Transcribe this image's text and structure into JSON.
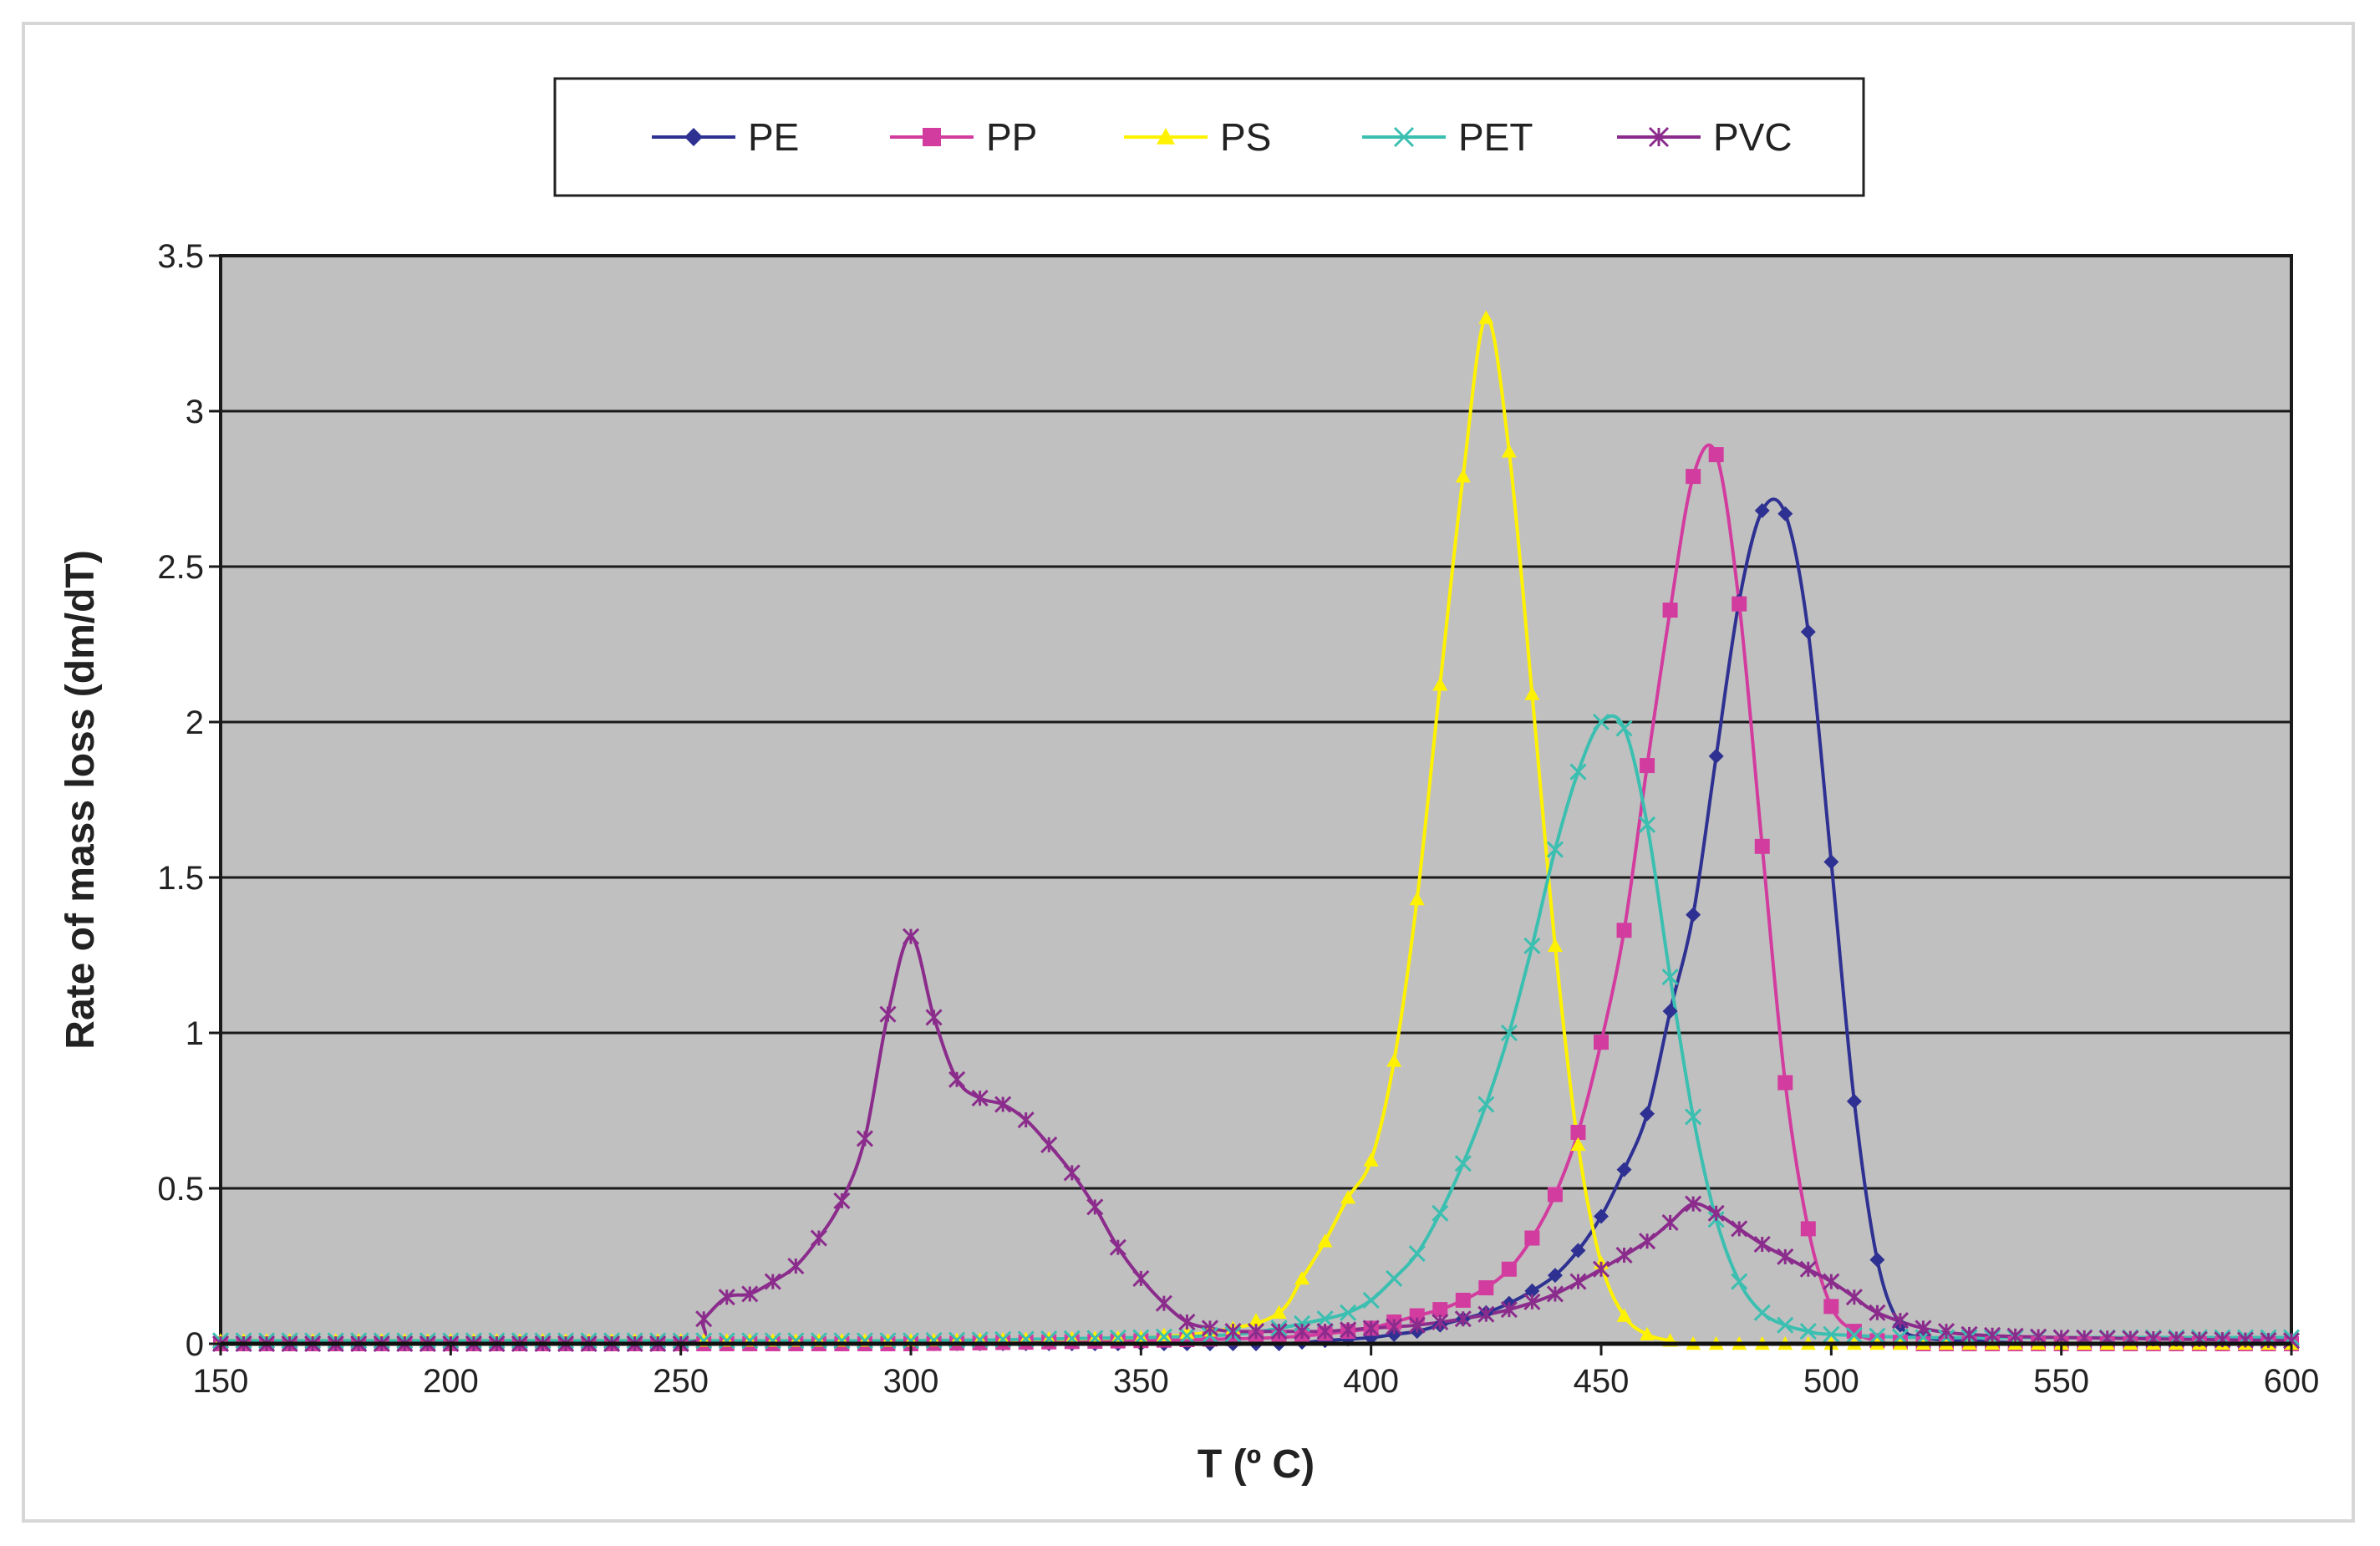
{
  "chart_data": {
    "type": "line",
    "title": "",
    "xlabel": "T (º C)",
    "ylabel": "Rate of mass loss (dm/dT)",
    "xlim": [
      150,
      600
    ],
    "ylim": [
      0,
      3.5
    ],
    "x_ticks": [
      150,
      200,
      250,
      300,
      350,
      400,
      450,
      500,
      550,
      600
    ],
    "y_ticks": [
      0,
      0.5,
      1,
      1.5,
      2,
      2.5,
      3,
      3.5
    ],
    "x_tick_labels": [
      "150",
      "200",
      "250",
      "300",
      "350",
      "400",
      "450",
      "500",
      "550",
      "600"
    ],
    "y_tick_labels": [
      "0",
      "0.5",
      "1",
      "1.5",
      "2",
      "2.5",
      "3",
      "3.5"
    ],
    "grid": "horizontal",
    "plot_background": "#c0c0c0",
    "legend_position": "top-center",
    "series": [
      {
        "name": "PE",
        "color": "#2e3192",
        "marker": "diamond",
        "points": [
          [
            150,
            0
          ],
          [
            200,
            0
          ],
          [
            250,
            0
          ],
          [
            300,
            0
          ],
          [
            350,
            0
          ],
          [
            380,
            0
          ],
          [
            390,
            0.01
          ],
          [
            400,
            0.02
          ],
          [
            405,
            0.03
          ],
          [
            410,
            0.04
          ],
          [
            415,
            0.06
          ],
          [
            420,
            0.08
          ],
          [
            425,
            0.1
          ],
          [
            430,
            0.13
          ],
          [
            435,
            0.17
          ],
          [
            440,
            0.22
          ],
          [
            445,
            0.3
          ],
          [
            450,
            0.41
          ],
          [
            455,
            0.56
          ],
          [
            460,
            0.74
          ],
          [
            465,
            1.07
          ],
          [
            470,
            1.38
          ],
          [
            475,
            1.89
          ],
          [
            480,
            2.39
          ],
          [
            485,
            2.68
          ],
          [
            490,
            2.67
          ],
          [
            495,
            2.29
          ],
          [
            500,
            1.55
          ],
          [
            505,
            0.78
          ],
          [
            510,
            0.27
          ],
          [
            515,
            0.06
          ],
          [
            520,
            0.02
          ],
          [
            530,
            0.01
          ],
          [
            550,
            0
          ],
          [
            600,
            0
          ]
        ]
      },
      {
        "name": "PP",
        "color": "#d33c9f",
        "marker": "square",
        "points": [
          [
            150,
            0
          ],
          [
            200,
            0
          ],
          [
            250,
            0
          ],
          [
            300,
            0
          ],
          [
            350,
            0.01
          ],
          [
            380,
            0.02
          ],
          [
            395,
            0.04
          ],
          [
            400,
            0.05
          ],
          [
            405,
            0.07
          ],
          [
            410,
            0.09
          ],
          [
            415,
            0.11
          ],
          [
            420,
            0.14
          ],
          [
            425,
            0.18
          ],
          [
            430,
            0.24
          ],
          [
            435,
            0.34
          ],
          [
            440,
            0.48
          ],
          [
            445,
            0.68
          ],
          [
            450,
            0.97
          ],
          [
            455,
            1.33
          ],
          [
            460,
            1.86
          ],
          [
            465,
            2.36
          ],
          [
            470,
            2.79
          ],
          [
            475,
            2.86
          ],
          [
            480,
            2.38
          ],
          [
            485,
            1.6
          ],
          [
            490,
            0.84
          ],
          [
            495,
            0.37
          ],
          [
            500,
            0.12
          ],
          [
            505,
            0.04
          ],
          [
            510,
            0.01
          ],
          [
            520,
            0
          ],
          [
            600,
            0
          ]
        ]
      },
      {
        "name": "PS",
        "color": "#fff200",
        "marker": "triangle",
        "points": [
          [
            150,
            0.01
          ],
          [
            200,
            0.01
          ],
          [
            250,
            0.01
          ],
          [
            300,
            0.01
          ],
          [
            350,
            0.02
          ],
          [
            370,
            0.05
          ],
          [
            380,
            0.1
          ],
          [
            385,
            0.21
          ],
          [
            390,
            0.33
          ],
          [
            395,
            0.47
          ],
          [
            400,
            0.59
          ],
          [
            405,
            0.91
          ],
          [
            410,
            1.43
          ],
          [
            415,
            2.12
          ],
          [
            420,
            2.79
          ],
          [
            425,
            3.3
          ],
          [
            430,
            2.87
          ],
          [
            435,
            2.09
          ],
          [
            440,
            1.28
          ],
          [
            445,
            0.64
          ],
          [
            450,
            0.26
          ],
          [
            455,
            0.09
          ],
          [
            460,
            0.03
          ],
          [
            465,
            0.01
          ],
          [
            470,
            0
          ],
          [
            500,
            0
          ],
          [
            600,
            0
          ]
        ]
      },
      {
        "name": "PET",
        "color": "#3bbfb0",
        "marker": "x",
        "points": [
          [
            150,
            0.01
          ],
          [
            200,
            0.01
          ],
          [
            250,
            0.01
          ],
          [
            300,
            0.01
          ],
          [
            350,
            0.02
          ],
          [
            370,
            0.03
          ],
          [
            380,
            0.05
          ],
          [
            390,
            0.08
          ],
          [
            395,
            0.1
          ],
          [
            400,
            0.14
          ],
          [
            405,
            0.21
          ],
          [
            410,
            0.29
          ],
          [
            415,
            0.42
          ],
          [
            420,
            0.58
          ],
          [
            425,
            0.77
          ],
          [
            430,
            1.0
          ],
          [
            435,
            1.28
          ],
          [
            440,
            1.59
          ],
          [
            445,
            1.84
          ],
          [
            450,
            2.0
          ],
          [
            455,
            1.98
          ],
          [
            460,
            1.67
          ],
          [
            465,
            1.18
          ],
          [
            470,
            0.73
          ],
          [
            475,
            0.4
          ],
          [
            480,
            0.2
          ],
          [
            485,
            0.1
          ],
          [
            490,
            0.06
          ],
          [
            495,
            0.04
          ],
          [
            500,
            0.03
          ],
          [
            520,
            0.02
          ],
          [
            550,
            0.02
          ],
          [
            600,
            0.02
          ]
        ]
      },
      {
        "name": "PVC",
        "color": "#8b2c8c",
        "marker": "star",
        "points": [
          [
            150,
            0
          ],
          [
            200,
            0
          ],
          [
            250,
            0
          ],
          [
            255,
            0.08
          ],
          [
            260,
            0.15
          ],
          [
            265,
            0.16
          ],
          [
            270,
            0.2
          ],
          [
            275,
            0.25
          ],
          [
            280,
            0.34
          ],
          [
            285,
            0.46
          ],
          [
            290,
            0.66
          ],
          [
            295,
            1.06
          ],
          [
            300,
            1.31
          ],
          [
            305,
            1.05
          ],
          [
            310,
            0.85
          ],
          [
            315,
            0.79
          ],
          [
            320,
            0.77
          ],
          [
            325,
            0.72
          ],
          [
            330,
            0.64
          ],
          [
            335,
            0.55
          ],
          [
            340,
            0.44
          ],
          [
            345,
            0.31
          ],
          [
            350,
            0.21
          ],
          [
            355,
            0.13
          ],
          [
            360,
            0.07
          ],
          [
            365,
            0.05
          ],
          [
            370,
            0.04
          ],
          [
            380,
            0.04
          ],
          [
            390,
            0.04
          ],
          [
            400,
            0.05
          ],
          [
            410,
            0.06
          ],
          [
            420,
            0.08
          ],
          [
            430,
            0.11
          ],
          [
            440,
            0.16
          ],
          [
            450,
            0.24
          ],
          [
            460,
            0.33
          ],
          [
            465,
            0.39
          ],
          [
            470,
            0.45
          ],
          [
            475,
            0.42
          ],
          [
            480,
            0.37
          ],
          [
            485,
            0.32
          ],
          [
            490,
            0.28
          ],
          [
            495,
            0.24
          ],
          [
            500,
            0.2
          ],
          [
            505,
            0.15
          ],
          [
            510,
            0.1
          ],
          [
            520,
            0.05
          ],
          [
            530,
            0.03
          ],
          [
            550,
            0.02
          ],
          [
            600,
            0.01
          ]
        ]
      }
    ]
  }
}
